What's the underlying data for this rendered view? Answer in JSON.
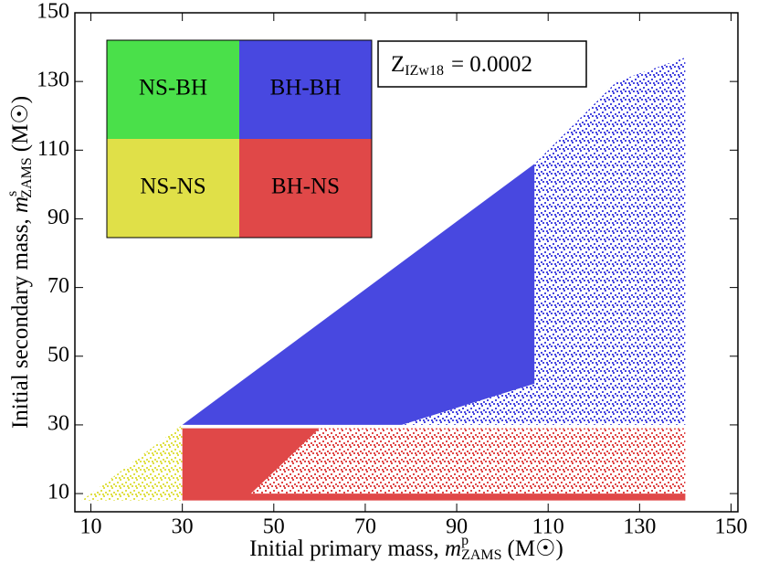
{
  "chart_data": {
    "type": "region",
    "xlabel": {
      "text": "Initial primary mass,",
      "symbol": "m",
      "sup": "p",
      "sub": "ZAMS",
      "unit": "(M☉)"
    },
    "ylabel": {
      "text": "Initial secondary mass,",
      "symbol": "m",
      "sup": "s",
      "sub": "ZAMS",
      "unit": "(M☉)"
    },
    "annotation": {
      "symbol": "Z",
      "sub": "IZw18",
      "text": "= 0.0002"
    },
    "xlim": [
      6.5,
      151.5
    ],
    "xticks": [
      10,
      30,
      50,
      70,
      90,
      110,
      130,
      150
    ],
    "ylim": [
      4.7,
      150
    ],
    "yticks": [
      10,
      30,
      50,
      70,
      90,
      110,
      130,
      150
    ],
    "series": [
      {
        "name": "NS-BH",
        "color": "#4ae04a",
        "regions": []
      },
      {
        "name": "BH-BH",
        "color": "#4848e0",
        "regions": [
          {
            "fill": "dense",
            "points": [
              [
                30,
                30
              ],
              [
                107,
                106
              ],
              [
                107,
                42
              ],
              [
                78,
                30
              ]
            ]
          },
          {
            "fill": "scattered",
            "points": [
              [
                78,
                30
              ],
              [
                107,
                42
              ],
              [
                107,
                106
              ],
              [
                125,
                130
              ],
              [
                140,
                137
              ],
              [
                140,
                30
              ]
            ]
          }
        ]
      },
      {
        "name": "NS-NS",
        "color": "#e0e048",
        "regions": [
          {
            "fill": "scattered",
            "points": [
              [
                8,
                8
              ],
              [
                30,
                30
              ],
              [
                30,
                8
              ]
            ]
          }
        ]
      },
      {
        "name": "BH-NS",
        "color": "#e04848",
        "regions": [
          {
            "fill": "dense",
            "points": [
              [
                30,
                8
              ],
              [
                30,
                29
              ],
              [
                60,
                29
              ],
              [
                45,
                10
              ],
              [
                140,
                10
              ],
              [
                140,
                8
              ]
            ]
          },
          {
            "fill": "scattered",
            "points": [
              [
                45,
                10
              ],
              [
                60,
                29
              ],
              [
                140,
                29
              ],
              [
                140,
                10
              ]
            ]
          }
        ]
      }
    ]
  }
}
